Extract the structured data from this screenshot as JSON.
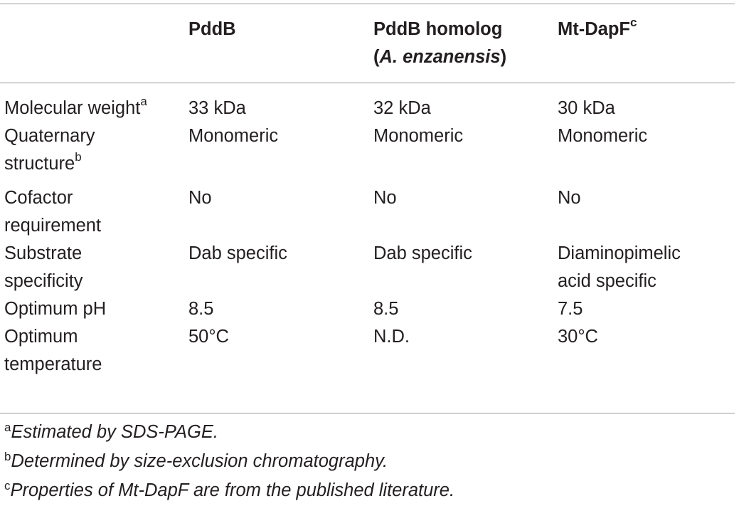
{
  "table": {
    "header": {
      "col0": "",
      "col1": "PddB",
      "col2_line1": "PddB homolog",
      "col2_open": "(",
      "col2_species": "A. enzanensis",
      "col2_close": ")",
      "col3": "Mt-DapF",
      "col3_sup": "c"
    },
    "rows": [
      {
        "label": "Molecular weight",
        "label_sup": "a",
        "pddb": "33 kDa",
        "homolog": "32 kDa",
        "mtdapf": "30 kDa"
      },
      {
        "label_line1": "Quaternary",
        "label_line2": "structure",
        "label_sup": "b",
        "pddb": "Monomeric",
        "homolog": "Monomeric",
        "mtdapf": "Monomeric"
      },
      {
        "label": "Cofactor\nrequirement",
        "pddb": "No",
        "homolog": "No",
        "mtdapf": "No"
      },
      {
        "label": "Substrate\nspecificity",
        "pddb": "Dab specific",
        "homolog": "Dab specific",
        "mtdapf": "Diaminopimelic\nacid specific"
      },
      {
        "label": "Optimum pH",
        "pddb": "8.5",
        "homolog": "8.5",
        "mtdapf": "7.5"
      },
      {
        "label": "Optimum\ntemperature",
        "pddb": "50°C",
        "homolog": "N.D.",
        "mtdapf": "30°C"
      }
    ]
  },
  "footnotes": [
    {
      "mark": "a",
      "text": "Estimated by SDS-PAGE."
    },
    {
      "mark": "b",
      "text": "Determined by size-exclusion chromatography."
    },
    {
      "mark": "c",
      "text": "Properties of Mt-DapF are from the published literature."
    }
  ]
}
